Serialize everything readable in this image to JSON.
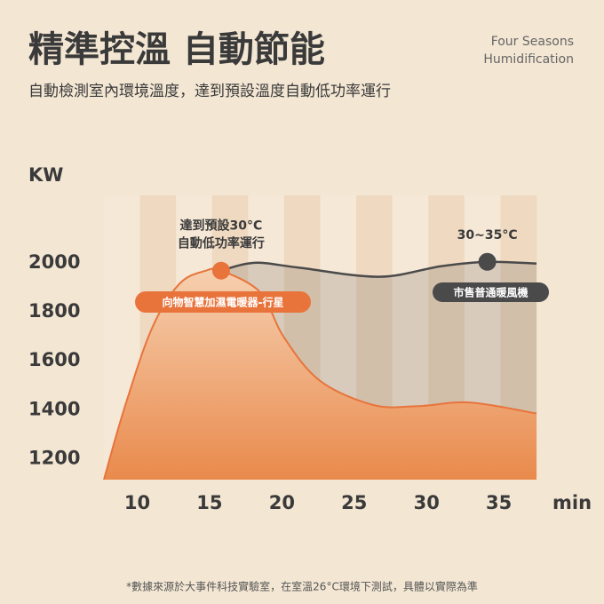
{
  "title": "精準控溫 自動節能",
  "subtitle": "自動檢測室內環境溫度，達到預設溫度自動低功率運行",
  "brand": [
    "Four Seasons",
    "Humidification"
  ],
  "footnote": "*數據來源於大事件科技實驗室，在室溫26°C環境下測試，具體以實際為準",
  "chart_data": {
    "type": "area",
    "y_label": "KW",
    "x_label": "min",
    "xlim": [
      7.7,
      37.6
    ],
    "xticks": [
      10,
      15,
      20,
      25,
      30,
      35
    ],
    "ylim": [
      1115,
      2275
    ],
    "yticks": [
      1200,
      1400,
      1600,
      1800,
      2000
    ],
    "series": [
      {
        "name": "向物智慧加濕電暖器-行星",
        "color": "#e8743c",
        "x": [
          7.7,
          9.1,
          11,
          12.9,
          14.7,
          15.8,
          18.5,
          20.1,
          22.6,
          26.3,
          29.4,
          33,
          37.6
        ],
        "values": [
          1115,
          1404,
          1730,
          1913,
          1967,
          1968,
          1880,
          1700,
          1520,
          1420,
          1415,
          1430,
          1385
        ]
      },
      {
        "name": "市售普通暖風機",
        "color": "#4a4a4a",
        "x": [
          15.8,
          18.1,
          21.2,
          26.7,
          31,
          34.2,
          37.6
        ],
        "values": [
          1968,
          2000,
          1980,
          1943,
          1986,
          2004,
          1997
        ]
      }
    ],
    "annotations": [
      {
        "text": [
          "達到預設30°C",
          "自動低功率運行"
        ],
        "x": 15.8,
        "y": 1968
      },
      {
        "text": [
          "30~35°C"
        ],
        "x": 34.2,
        "y": 2004
      }
    ]
  }
}
